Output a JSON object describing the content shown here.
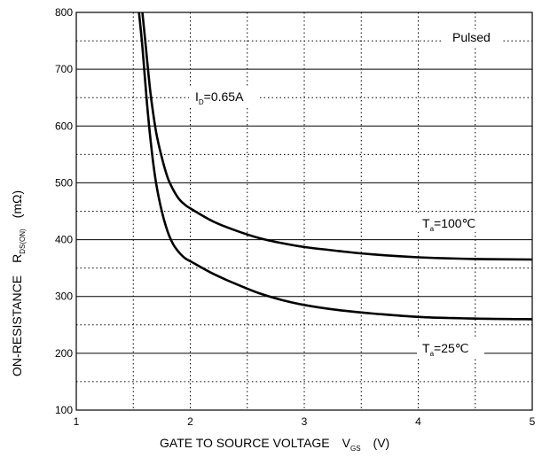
{
  "chart_data": {
    "type": "line",
    "title": "",
    "x_ticks": [
      "1",
      "2",
      "3",
      "4",
      "5"
    ],
    "y_ticks": [
      "100",
      "200",
      "300",
      "400",
      "500",
      "600",
      "700",
      "800"
    ],
    "xlim": [
      1,
      5
    ],
    "ylim": [
      100,
      800
    ],
    "grid": {
      "major": "solid horizontal lines at labeled y ticks",
      "minor": "dotted lines at half steps (x every 0.5, y every 50)"
    },
    "xlabel": {
      "prefix": "GATE TO SOURCE VOLTAGE",
      "symbol": "V",
      "subscript": "GS",
      "unit": "(V)"
    },
    "ylabel": {
      "prefix": "ON-RESISTANCE",
      "symbol": "R",
      "subscript": "DS(ON)",
      "unit": "(mΩ)"
    },
    "annotations": {
      "pulsed": "Pulsed",
      "id": {
        "symbol": "I",
        "subscript": "D",
        "value": "=0.65A"
      },
      "ta_hot": {
        "symbol": "T",
        "subscript": "a",
        "value": "=100℃"
      },
      "ta_cold": {
        "symbol": "T",
        "subscript": "a",
        "value": "=25℃"
      }
    },
    "series": [
      {
        "condition": "Ta=100℃",
        "points": [
          [
            1.58,
            800
          ],
          [
            1.6,
            760
          ],
          [
            1.65,
            660
          ],
          [
            1.7,
            590
          ],
          [
            1.75,
            545
          ],
          [
            1.8,
            510
          ],
          [
            1.85,
            488
          ],
          [
            1.9,
            472
          ],
          [
            1.95,
            462
          ],
          [
            2.0,
            455
          ],
          [
            2.2,
            432
          ],
          [
            2.4,
            416
          ],
          [
            2.6,
            403
          ],
          [
            2.8,
            394
          ],
          [
            3.0,
            387
          ],
          [
            3.3,
            380
          ],
          [
            3.6,
            374
          ],
          [
            4.0,
            369
          ],
          [
            4.5,
            366
          ],
          [
            5.0,
            365
          ]
        ]
      },
      {
        "condition": "Ta=25℃",
        "points": [
          [
            1.55,
            800
          ],
          [
            1.58,
            740
          ],
          [
            1.62,
            640
          ],
          [
            1.66,
            560
          ],
          [
            1.7,
            500
          ],
          [
            1.75,
            450
          ],
          [
            1.8,
            415
          ],
          [
            1.85,
            392
          ],
          [
            1.9,
            378
          ],
          [
            1.95,
            368
          ],
          [
            2.0,
            362
          ],
          [
            2.2,
            340
          ],
          [
            2.4,
            322
          ],
          [
            2.6,
            306
          ],
          [
            2.8,
            294
          ],
          [
            3.0,
            285
          ],
          [
            3.3,
            276
          ],
          [
            3.6,
            270
          ],
          [
            4.0,
            264
          ],
          [
            4.5,
            261
          ],
          [
            5.0,
            260
          ]
        ]
      }
    ]
  }
}
